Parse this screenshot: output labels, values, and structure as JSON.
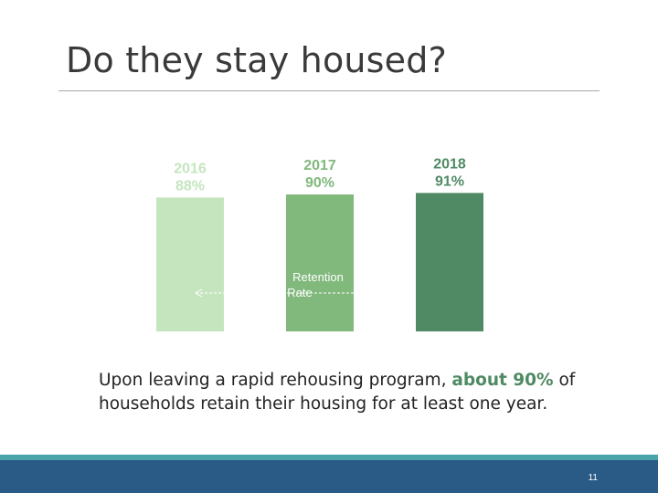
{
  "slide": {
    "title": "Do they stay housed?",
    "caption_before": "Upon leaving a rapid rehousing program, ",
    "caption_highlight": "about 90%",
    "caption_after": " of households retain their housing for at least one year.",
    "page_number": "11"
  },
  "chart_data": {
    "type": "bar",
    "categories": [
      "2016",
      "2017",
      "2018"
    ],
    "values": [
      88,
      90,
      91
    ],
    "value_labels": [
      "88%",
      "90%",
      "91%"
    ],
    "ylabel": "",
    "ylim": [
      0,
      100
    ],
    "grid": false,
    "annotations": [
      {
        "text": "Retention\nRate",
        "lines": [
          "Retention",
          "Rate"
        ],
        "style": "dashed double-headed arrow spanning bars"
      }
    ],
    "colors": [
      "#c5e5bf",
      "#81b87c",
      "#508a65"
    ],
    "label_colors": [
      "#c5e5bf",
      "#81b87c",
      "#508a65"
    ]
  }
}
